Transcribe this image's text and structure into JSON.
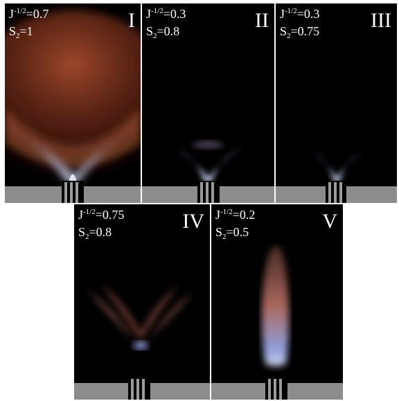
{
  "panels": [
    {
      "id": "I",
      "roman": "I",
      "j_prefix": "J",
      "j_exp": "-1/2",
      "j_value": "=0.7",
      "s_prefix": "S",
      "s_sub": "2",
      "s_value": "=1",
      "flame": "wide-orange"
    },
    {
      "id": "II",
      "roman": "II",
      "j_prefix": "J",
      "j_exp": "-1/2",
      "j_value": "=0.3",
      "s_prefix": "S",
      "s_sub": "2",
      "s_value": "=0.8",
      "flame": "v-blue"
    },
    {
      "id": "III",
      "roman": "III",
      "j_prefix": "J",
      "j_exp": "-1/2",
      "j_value": "=0.3",
      "s_prefix": "S",
      "s_sub": "2",
      "s_value": "=0.75",
      "flame": "small-blue"
    },
    {
      "id": "IV",
      "roman": "IV",
      "j_prefix": "J",
      "j_exp": "-1/2",
      "j_value": "=0.75",
      "s_prefix": "S",
      "s_sub": "2",
      "s_value": "=0.8",
      "flame": "m-shape"
    },
    {
      "id": "V",
      "roman": "V",
      "j_prefix": "J",
      "j_exp": "-1/2",
      "j_value": "=0.2",
      "s_prefix": "S",
      "s_sub": "2",
      "s_value": "=0.5",
      "flame": "tall-column"
    }
  ],
  "colors": {
    "background": "#000000",
    "burner": "#8c8c8c",
    "flame_blue": "#9fb6ff",
    "flame_orange": "#c8573a"
  }
}
